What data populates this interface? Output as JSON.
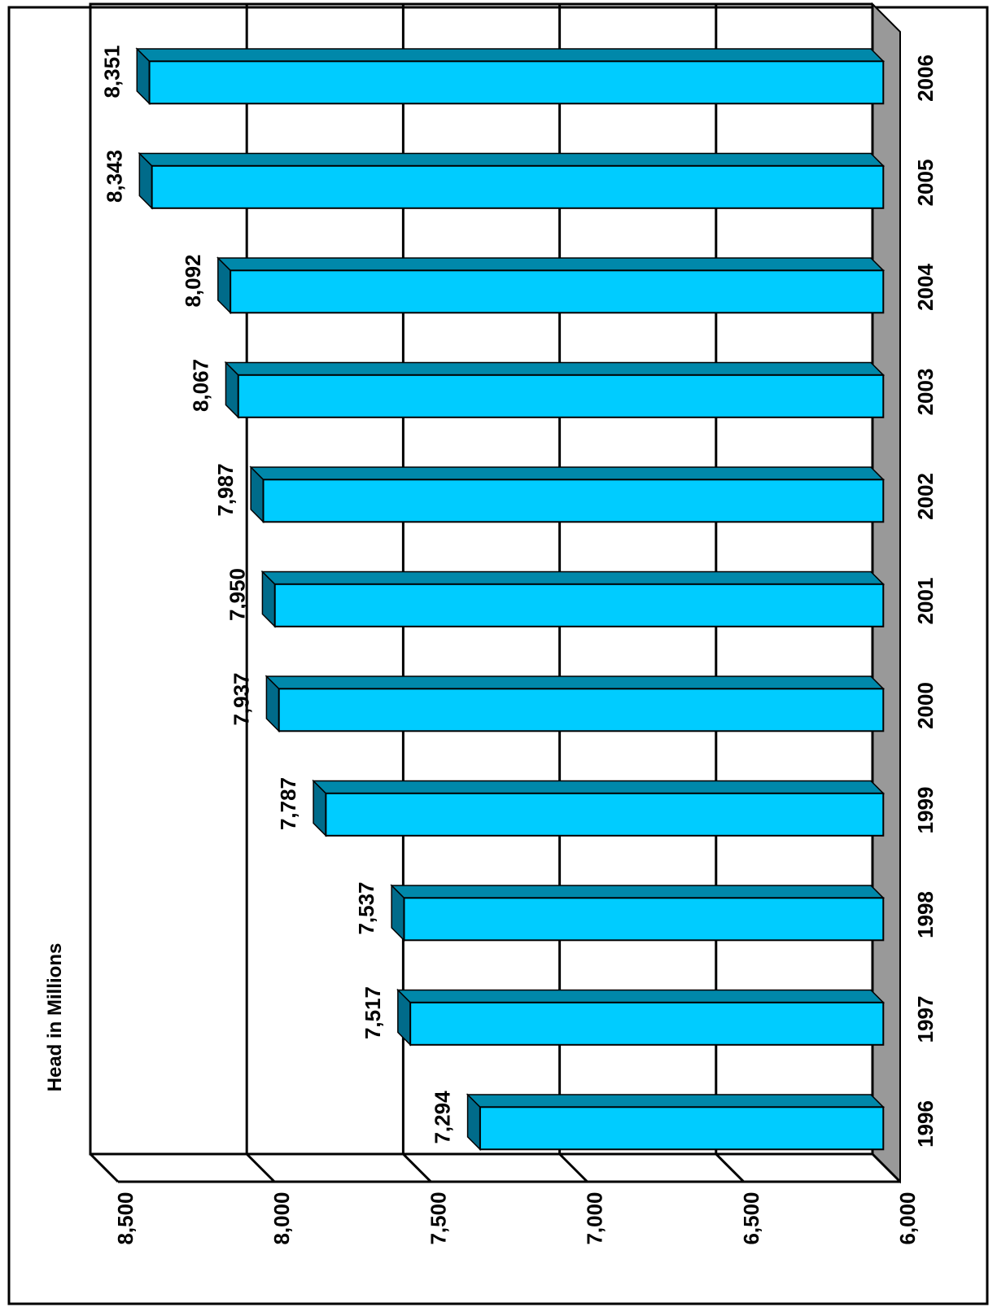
{
  "chart_data": {
    "type": "bar",
    "orientation": "horizontal-rotated",
    "categories": [
      "1996",
      "1997",
      "1998",
      "1999",
      "2000",
      "2001",
      "2002",
      "2003",
      "2004",
      "2005",
      "2006"
    ],
    "values": [
      7294,
      7517,
      7537,
      7787,
      7937,
      7950,
      7987,
      8067,
      8092,
      8343,
      8351
    ],
    "value_labels": [
      "7,294",
      "7,517",
      "7,537",
      "7,787",
      "7,937",
      "7,950",
      "7,987",
      "8,067",
      "8,092",
      "8,343",
      "8,351"
    ],
    "title": "",
    "ylabel": "Head in Millions",
    "xlabel": "",
    "ylim": [
      6000,
      8500
    ],
    "ticks": [
      6000,
      6500,
      7000,
      7500,
      8000,
      8500
    ],
    "tick_labels": [
      "6,000",
      "6,500",
      "7,000",
      "7,500",
      "8,000",
      "8,500"
    ],
    "grid": true,
    "legend": "none",
    "colors": {
      "bar_front": "#00CCFF",
      "bar_top": "#0088AA",
      "bar_side": "#006B8A",
      "floor": "#999999",
      "grid": "#000000"
    }
  }
}
